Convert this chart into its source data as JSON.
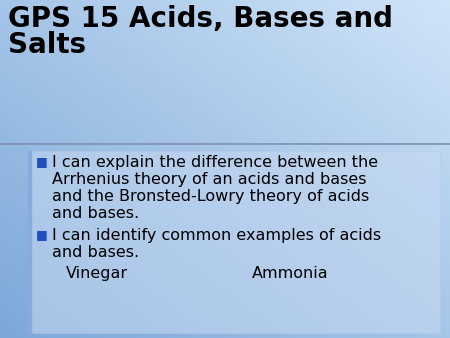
{
  "title_line1": "GPS 15 Acids, Bases and",
  "title_line2": "Salts",
  "title_fontsize": 20,
  "title_color": "#000000",
  "bullet_color": "#1F4EBD",
  "bullet_square": "■",
  "body_fontsize": 11.5,
  "body_color": "#000000",
  "bullet1_lines": [
    "I can explain the difference between the",
    "Arrhenius theory of an acids and bases",
    "and the Bronsted-Lowry theory of acids",
    "and bases."
  ],
  "bullet2_lines": [
    "I can identify common examples of acids",
    "and bases."
  ],
  "vinegar_text": "Vinegar",
  "ammonia_text": "Ammonia",
  "bg_gradient_top_left": "#7ba7d8",
  "bg_gradient_bottom_right": "#d0e4f8",
  "content_box_color": "#c2d8f0",
  "separator_color": "#8090b0",
  "left_bar_color": "#6080c0"
}
